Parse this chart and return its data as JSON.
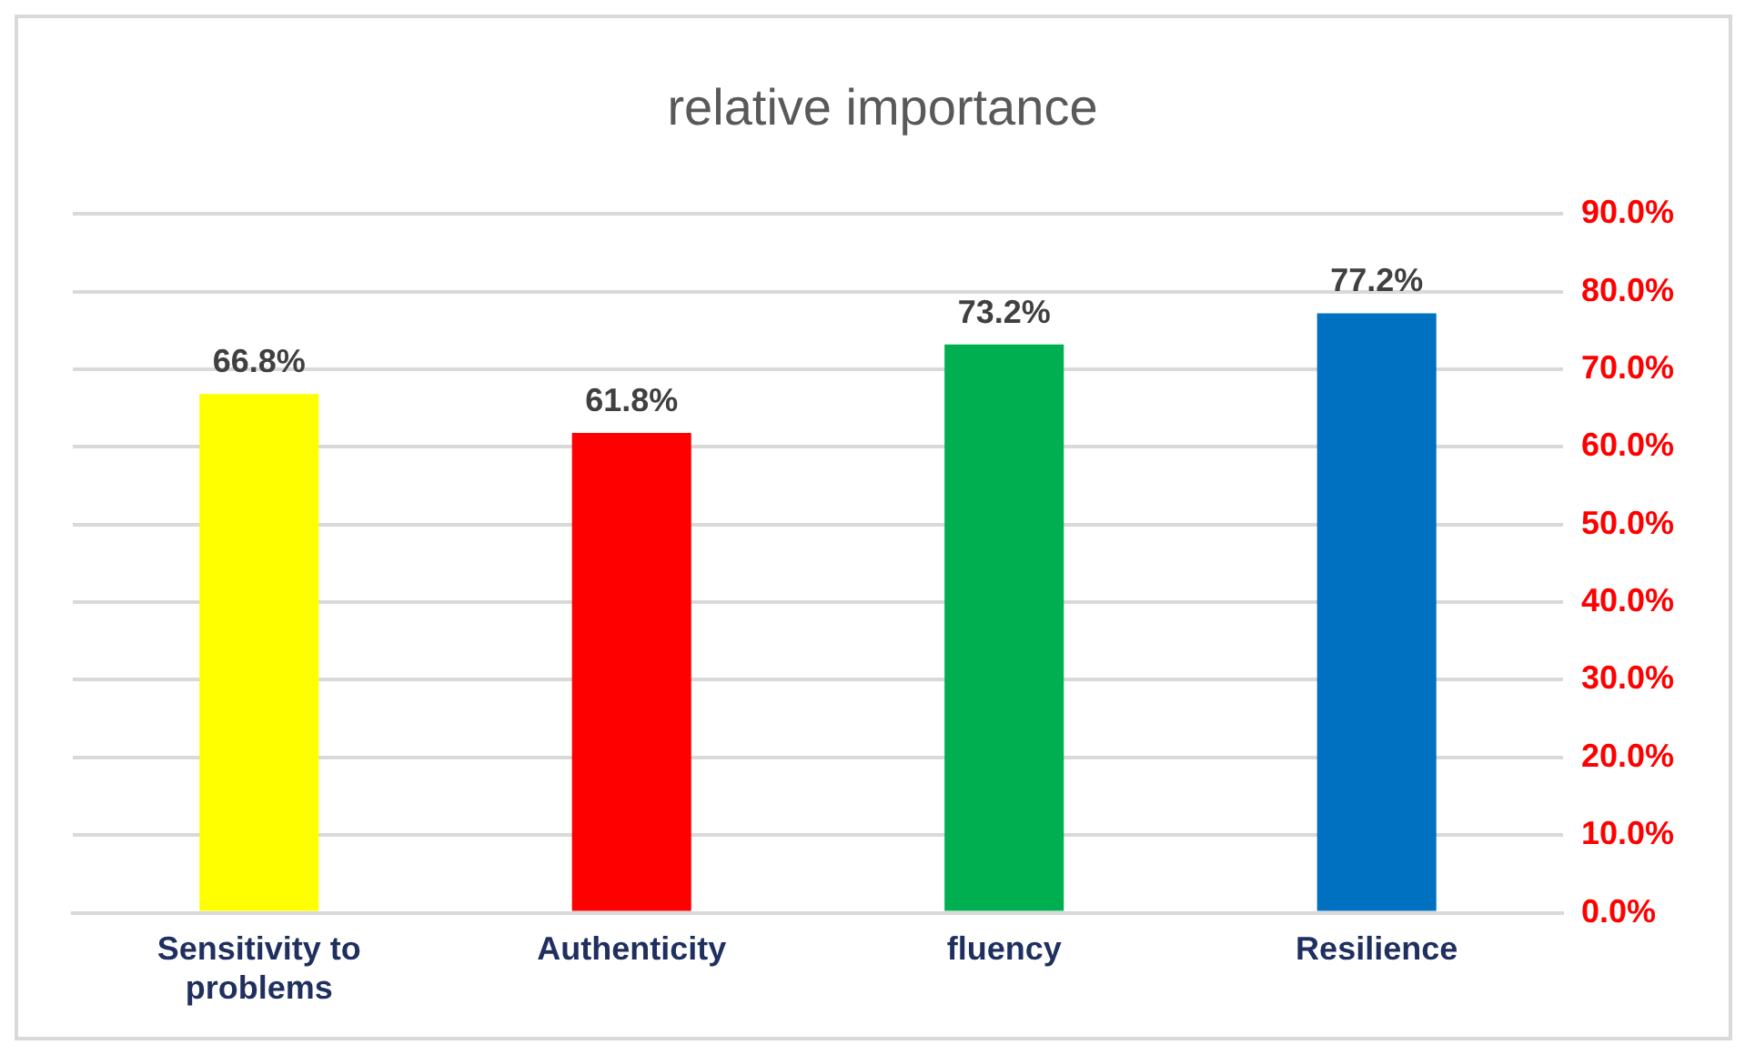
{
  "chart_data": {
    "type": "bar",
    "title": "relative importance",
    "categories": [
      "Sensitivity to problems",
      "Authenticity",
      "fluency",
      "Resilience"
    ],
    "values": [
      66.8,
      61.8,
      73.2,
      77.2
    ],
    "colors": [
      "#ffff00",
      "#ff0000",
      "#00b050",
      "#0070c0"
    ],
    "value_labels": [
      "66.8%",
      "61.8%",
      "73.2%",
      "77.2%"
    ],
    "ylim": [
      0,
      90
    ],
    "yticks": [
      {
        "value": 0,
        "label": "0.0%"
      },
      {
        "value": 10,
        "label": "10.0%"
      },
      {
        "value": 20,
        "label": "20.0%"
      },
      {
        "value": 30,
        "label": "30.0%"
      },
      {
        "value": 40,
        "label": "40.0%"
      },
      {
        "value": 50,
        "label": "50.0%"
      },
      {
        "value": 60,
        "label": "60.0%"
      },
      {
        "value": 70,
        "label": "70.0%"
      },
      {
        "value": 80,
        "label": "80.0%"
      },
      {
        "value": 90,
        "label": "90.0%"
      }
    ],
    "grid": "y"
  }
}
